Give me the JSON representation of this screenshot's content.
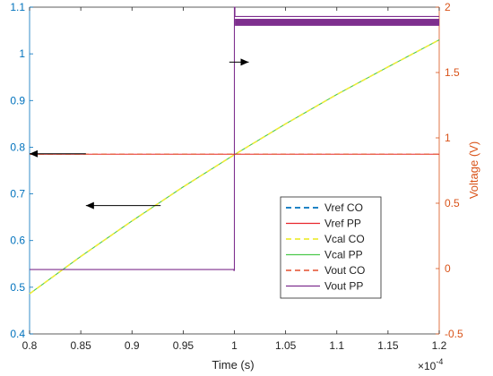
{
  "chart_data": {
    "type": "line",
    "title": "",
    "xlabel": "Time (s)",
    "x_exponent_label": "×10",
    "x_exponent_power": "-4",
    "ylabel_left": "",
    "ylabel_right": "Voltage (V)",
    "xlim": [
      0.8,
      1.2
    ],
    "ylim_left": [
      0.4,
      1.1
    ],
    "ylim_right": [
      -0.5,
      2.0
    ],
    "x_ticks": [
      "0.8",
      "0.85",
      "0.9",
      "0.95",
      "1",
      "1.05",
      "1.1",
      "1.15",
      "1.2"
    ],
    "y_left_ticks": [
      "0.4",
      "0.5",
      "0.6",
      "0.7",
      "0.8",
      "0.9",
      "1",
      "1.1"
    ],
    "y_right_ticks": [
      "-0.5",
      "0",
      "0.5",
      "1",
      "1.5",
      "2"
    ],
    "grid": false,
    "legend_position": "lower-right",
    "colors": {
      "left_axis": "#0072BD",
      "right_axis": "#D95319",
      "vref_co": "#0072BD",
      "vref_pp": "#E8262B",
      "vcal_co": "#EDEB3A",
      "vcal_pp": "#4CC94C",
      "vout_co": "#E8674B",
      "vout_pp": "#7E2F8E"
    },
    "series": [
      {
        "name": "Vref CO",
        "axis": "right",
        "style": "dashed",
        "x": [
          0.8,
          1.2
        ],
        "y": [
          0.875,
          0.875
        ]
      },
      {
        "name": "Vref PP",
        "axis": "right",
        "style": "solid",
        "x": [
          0.8,
          1.2
        ],
        "y": [
          0.875,
          0.875
        ]
      },
      {
        "name": "Vcal CO",
        "axis": "left",
        "style": "dashed",
        "x": [
          0.8,
          0.85,
          0.9,
          0.95,
          1.0,
          1.05,
          1.1,
          1.15,
          1.2
        ],
        "y": [
          0.486,
          0.566,
          0.642,
          0.715,
          0.784,
          0.85,
          0.913,
          0.972,
          1.03
        ]
      },
      {
        "name": "Vcal PP",
        "axis": "left",
        "style": "solid",
        "x": [
          0.8,
          0.85,
          0.9,
          0.95,
          1.0,
          1.05,
          1.1,
          1.15,
          1.2
        ],
        "y": [
          0.486,
          0.566,
          0.642,
          0.715,
          0.784,
          0.85,
          0.913,
          0.972,
          1.03
        ]
      },
      {
        "name": "Vout CO",
        "axis": "right",
        "style": "dashed",
        "x": [
          0.8,
          1.2
        ],
        "y": [
          0.875,
          0.875
        ]
      },
      {
        "name": "Vout PP",
        "axis": "left",
        "style": "solid",
        "x": [
          0.8,
          0.9995,
          0.9995,
          1.0,
          1.0,
          1.0005,
          1.0005,
          1.2
        ],
        "y": [
          0.538,
          0.538,
          0.536,
          0.536,
          1.1,
          1.1,
          1.08,
          1.08
        ],
        "band_from": 1.0005,
        "band_low": 1.06,
        "band_high": 1.075
      }
    ],
    "annotations": [
      {
        "type": "arrow",
        "axis": "left",
        "from": [
          0.855,
          0.786
        ],
        "to": [
          0.8,
          0.786
        ]
      },
      {
        "type": "arrow",
        "axis": "left",
        "from": [
          0.928,
          0.675
        ],
        "to": [
          0.855,
          0.675
        ]
      },
      {
        "type": "arrow",
        "axis": "right",
        "from": [
          0.995,
          1.58
        ],
        "to": [
          1.014,
          1.58
        ]
      }
    ]
  }
}
